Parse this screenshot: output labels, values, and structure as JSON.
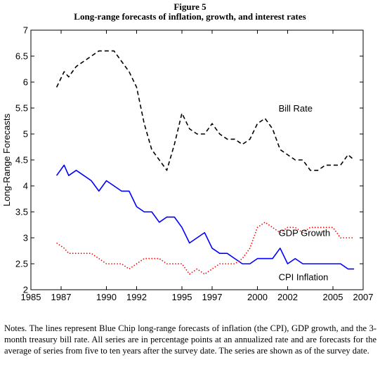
{
  "figure": {
    "number": "Figure 5",
    "title": "Long-range forecasts of inflation, growth, and interest rates"
  },
  "notes": "Notes. The lines represent Blue Chip long-range forecasts of inflation (the CPI), GDP growth, and the 3-month treasury bill rate. All series are in percentage points at an annualized rate and are forecasts for the average of series from five to ten years after the survey date. The series are shown as of the survey date.",
  "colors": {
    "bill_rate": "#000000",
    "gdp_growth": "#0000ff",
    "cpi_inflation": "#ff0000",
    "axis": "#000000"
  },
  "chart_data": {
    "type": "line",
    "title": "",
    "xlabel": "",
    "ylabel": "Long-Range Forecasts",
    "xlim": [
      1985,
      2007
    ],
    "ylim": [
      2,
      7
    ],
    "grid": false,
    "x_ticks": [
      1985,
      1987,
      1990,
      1992,
      1995,
      1997,
      2000,
      2002,
      2005,
      2007
    ],
    "y_ticks": [
      2,
      2.5,
      3,
      3.5,
      4,
      4.5,
      5,
      5.5,
      6,
      6.5,
      7
    ],
    "series": [
      {
        "name": "Bill Rate",
        "style": "dashed",
        "color_key": "bill_rate",
        "points": [
          [
            1986.7,
            5.9
          ],
          [
            1987.2,
            6.2
          ],
          [
            1987.5,
            6.1
          ],
          [
            1988.0,
            6.3
          ],
          [
            1988.5,
            6.4
          ],
          [
            1989.0,
            6.5
          ],
          [
            1989.5,
            6.6
          ],
          [
            1990.0,
            6.6
          ],
          [
            1990.5,
            6.6
          ],
          [
            1991.0,
            6.4
          ],
          [
            1991.5,
            6.2
          ],
          [
            1992.0,
            5.9
          ],
          [
            1992.5,
            5.2
          ],
          [
            1993.0,
            4.7
          ],
          [
            1993.5,
            4.5
          ],
          [
            1994.0,
            4.3
          ],
          [
            1994.5,
            4.8
          ],
          [
            1995.0,
            5.4
          ],
          [
            1995.5,
            5.1
          ],
          [
            1996.0,
            5.0
          ],
          [
            1996.5,
            5.0
          ],
          [
            1997.0,
            5.2
          ],
          [
            1997.5,
            5.0
          ],
          [
            1998.0,
            4.9
          ],
          [
            1998.5,
            4.9
          ],
          [
            1999.0,
            4.8
          ],
          [
            1999.5,
            4.9
          ],
          [
            2000.0,
            5.2
          ],
          [
            2000.5,
            5.3
          ],
          [
            2001.0,
            5.1
          ],
          [
            2001.5,
            4.7
          ],
          [
            2002.0,
            4.6
          ],
          [
            2002.5,
            4.5
          ],
          [
            2003.0,
            4.5
          ],
          [
            2003.5,
            4.3
          ],
          [
            2004.0,
            4.3
          ],
          [
            2004.5,
            4.4
          ],
          [
            2005.0,
            4.4
          ],
          [
            2005.5,
            4.4
          ],
          [
            2006.0,
            4.6
          ],
          [
            2006.4,
            4.5
          ]
        ]
      },
      {
        "name": "GDP Growth",
        "style": "solid",
        "color_key": "gdp_growth",
        "points": [
          [
            1986.7,
            4.2
          ],
          [
            1987.2,
            4.4
          ],
          [
            1987.5,
            4.2
          ],
          [
            1988.0,
            4.3
          ],
          [
            1988.5,
            4.2
          ],
          [
            1989.0,
            4.1
          ],
          [
            1989.5,
            3.9
          ],
          [
            1990.0,
            4.1
          ],
          [
            1990.5,
            4.0
          ],
          [
            1991.0,
            3.9
          ],
          [
            1991.5,
            3.9
          ],
          [
            1992.0,
            3.6
          ],
          [
            1992.5,
            3.5
          ],
          [
            1993.0,
            3.5
          ],
          [
            1993.5,
            3.3
          ],
          [
            1994.0,
            3.4
          ],
          [
            1994.5,
            3.4
          ],
          [
            1995.0,
            3.2
          ],
          [
            1995.5,
            2.9
          ],
          [
            1996.0,
            3.0
          ],
          [
            1996.5,
            3.1
          ],
          [
            1997.0,
            2.8
          ],
          [
            1997.5,
            2.7
          ],
          [
            1998.0,
            2.7
          ],
          [
            1998.5,
            2.6
          ],
          [
            1999.0,
            2.5
          ],
          [
            1999.5,
            2.5
          ],
          [
            2000.0,
            2.6
          ],
          [
            2000.5,
            2.6
          ],
          [
            2001.0,
            2.6
          ],
          [
            2001.5,
            2.8
          ],
          [
            2002.0,
            2.5
          ],
          [
            2002.5,
            2.6
          ],
          [
            2003.0,
            2.5
          ],
          [
            2003.5,
            2.5
          ],
          [
            2004.0,
            2.5
          ],
          [
            2004.5,
            2.5
          ],
          [
            2005.0,
            2.5
          ],
          [
            2005.5,
            2.5
          ],
          [
            2006.0,
            2.4
          ],
          [
            2006.4,
            2.4
          ]
        ]
      },
      {
        "name": "CPI Inflation",
        "style": "dotted",
        "color_key": "cpi_inflation",
        "points": [
          [
            1986.7,
            2.9
          ],
          [
            1987.2,
            2.8
          ],
          [
            1987.5,
            2.7
          ],
          [
            1988.0,
            2.7
          ],
          [
            1988.5,
            2.7
          ],
          [
            1989.0,
            2.7
          ],
          [
            1989.5,
            2.6
          ],
          [
            1990.0,
            2.5
          ],
          [
            1990.5,
            2.5
          ],
          [
            1991.0,
            2.5
          ],
          [
            1991.5,
            2.4
          ],
          [
            1992.0,
            2.5
          ],
          [
            1992.5,
            2.6
          ],
          [
            1993.0,
            2.6
          ],
          [
            1993.5,
            2.6
          ],
          [
            1994.0,
            2.5
          ],
          [
            1994.5,
            2.5
          ],
          [
            1995.0,
            2.5
          ],
          [
            1995.5,
            2.3
          ],
          [
            1996.0,
            2.4
          ],
          [
            1996.5,
            2.3
          ],
          [
            1997.0,
            2.4
          ],
          [
            1997.5,
            2.5
          ],
          [
            1998.0,
            2.5
          ],
          [
            1998.5,
            2.5
          ],
          [
            1999.0,
            2.6
          ],
          [
            1999.5,
            2.8
          ],
          [
            2000.0,
            3.2
          ],
          [
            2000.5,
            3.3
          ],
          [
            2001.0,
            3.2
          ],
          [
            2001.5,
            3.1
          ],
          [
            2002.0,
            3.2
          ],
          [
            2002.5,
            3.2
          ],
          [
            2003.0,
            3.1
          ],
          [
            2003.5,
            3.2
          ],
          [
            2004.0,
            3.2
          ],
          [
            2004.5,
            3.2
          ],
          [
            2005.0,
            3.2
          ],
          [
            2005.5,
            3.0
          ],
          [
            2006.0,
            3.0
          ],
          [
            2006.4,
            3.0
          ]
        ]
      }
    ],
    "annotations": [
      {
        "text": "Bill Rate",
        "series": "Bill Rate",
        "at": [
          2001.4,
          5.5
        ]
      },
      {
        "text": "GDP Growth",
        "series": "GDP Growth",
        "at": [
          2001.4,
          3.1
        ]
      },
      {
        "text": "CPI Inflation",
        "series": "CPI Inflation",
        "at": [
          2001.4,
          2.25
        ]
      }
    ]
  }
}
